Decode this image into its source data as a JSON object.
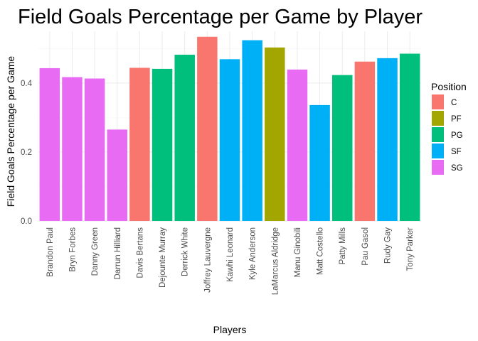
{
  "chart_data": {
    "type": "bar",
    "title": "Field Goals Percentage per Game by Player",
    "xlabel": "Players",
    "ylabel": "Field Goals Percentage per Game",
    "ylim": [
      0,
      0.55
    ],
    "yticks": [
      0.0,
      0.2,
      0.4
    ],
    "ytick_labels": [
      "0.0",
      "0.2",
      "0.4"
    ],
    "grid": true,
    "legend": {
      "title": "Position",
      "placement": "right",
      "entries": [
        {
          "label": "C",
          "color": "#F8766D"
        },
        {
          "label": "PF",
          "color": "#A3A500"
        },
        {
          "label": "PG",
          "color": "#00BF7D"
        },
        {
          "label": "SF",
          "color": "#00B0F6"
        },
        {
          "label": "SG",
          "color": "#E76BF3"
        }
      ]
    },
    "categories": [
      "Brandon Paul",
      "Bryn Forbes",
      "Danny Green",
      "Darrun Hilliard",
      "Davis Bertans",
      "Dejounte Murray",
      "Derrick White",
      "Joffrey Lauvergne",
      "Kawhi Leonard",
      "Kyle Anderson",
      "LaMarcus Aldridge",
      "Manu Ginobili",
      "Matt Costello",
      "Patty Mills",
      "Pau Gasol",
      "Rudy Gay",
      "Tony Parker"
    ],
    "values": [
      0.443,
      0.417,
      0.413,
      0.265,
      0.444,
      0.441,
      0.482,
      0.534,
      0.469,
      0.524,
      0.503,
      0.439,
      0.336,
      0.423,
      0.462,
      0.472,
      0.485
    ],
    "positions": [
      "SG",
      "SG",
      "SG",
      "SG",
      "C",
      "PG",
      "PG",
      "C",
      "SF",
      "SF",
      "PF",
      "SG",
      "SF",
      "PG",
      "C",
      "SF",
      "PG"
    ]
  }
}
